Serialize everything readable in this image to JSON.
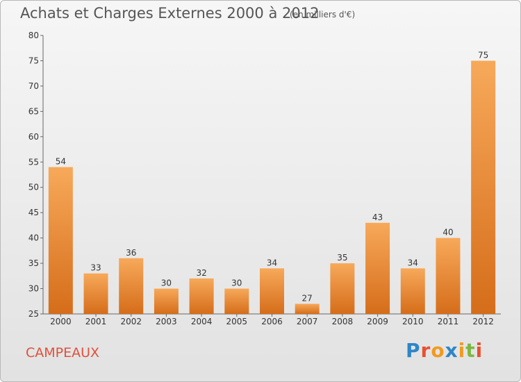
{
  "header": {
    "title": "Achats et Charges Externes 2000 à 2012",
    "unit": "(en milliers d'€)"
  },
  "footer": {
    "town": "CAMPEAUX",
    "logo_text": "Proxiti",
    "logo_colors": [
      "#2e86c8",
      "#e9502f",
      "#f29a1f",
      "#2e86c8",
      "#f29a1f",
      "#7cb840",
      "#e9502f"
    ]
  },
  "colors": {
    "bar_light": "#f7a95a",
    "bar_dark": "#d56d1a",
    "title": "#555555",
    "town": "#e0503a"
  },
  "chart_data": {
    "type": "bar",
    "categories": [
      "2000",
      "2001",
      "2002",
      "2003",
      "2004",
      "2005",
      "2006",
      "2007",
      "2008",
      "2009",
      "2010",
      "2011",
      "2012"
    ],
    "values": [
      54,
      33,
      36,
      30,
      32,
      30,
      34,
      27,
      35,
      43,
      34,
      40,
      75
    ],
    "ylim": [
      25,
      80
    ],
    "yticks": [
      25,
      30,
      35,
      40,
      45,
      50,
      55,
      60,
      65,
      70,
      75,
      80
    ],
    "grid": false
  }
}
